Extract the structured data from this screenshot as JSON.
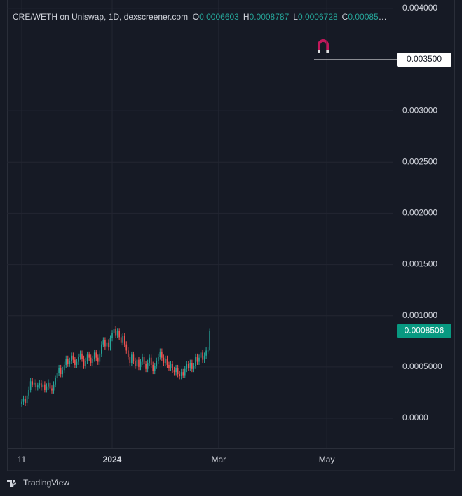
{
  "chart_data": {
    "type": "candlestick",
    "title": "CRE/WETH on Uniswap, 1D, dexscreener.com",
    "ohlc_labels": [
      "O",
      "H",
      "L",
      "C"
    ],
    "up_color": "#26a69a",
    "down_color": "#ef5350",
    "open": [
      0.00014,
      0.00016,
      0.00019,
      0.00015,
      0.00022,
      0.00028,
      0.00036,
      0.00033,
      0.00035,
      0.0003,
      0.00032,
      0.00034,
      0.0003,
      0.00033,
      0.00028,
      0.00031,
      0.00035,
      0.00029,
      0.00027,
      0.00033,
      0.00039,
      0.00044,
      0.00049,
      0.00043,
      0.00047,
      0.00052,
      0.00058,
      0.00053,
      0.00056,
      0.00061,
      0.00057,
      0.00052,
      0.00055,
      0.0006,
      0.00063,
      0.00058,
      0.00051,
      0.00056,
      0.00062,
      0.00059,
      0.00054,
      0.00058,
      0.00064,
      0.00059,
      0.00055,
      0.00063,
      0.00072,
      0.00076,
      0.0007,
      0.00074,
      0.00069,
      0.00078,
      0.00083,
      0.00087,
      0.00081,
      0.00085,
      0.00079,
      0.00074,
      0.0008,
      0.00072,
      0.00066,
      0.0006,
      0.00054,
      0.00062,
      0.00056,
      0.00051,
      0.00057,
      0.0005,
      0.00055,
      0.0006,
      0.00053,
      0.00048,
      0.00054,
      0.00059,
      0.00052,
      0.00046,
      0.00051,
      0.00056,
      0.0006,
      0.00065,
      0.00059,
      0.00054,
      0.00058,
      0.00052,
      0.00049,
      0.00053,
      0.00047,
      0.00045,
      0.00049,
      0.00043,
      0.00041,
      0.00045,
      0.00042,
      0.00048,
      0.00053,
      0.00049,
      0.00054,
      0.00048,
      0.00051,
      0.0006,
      0.00055,
      0.00059,
      0.00064,
      0.00057,
      0.00061,
      0.00066,
      0.0006603
    ],
    "high": [
      0.00019,
      0.00022,
      0.00022,
      0.00025,
      0.00031,
      0.00039,
      0.00039,
      0.00038,
      0.00038,
      0.00035,
      0.00037,
      0.00037,
      0.00036,
      0.00036,
      0.00034,
      0.00038,
      0.00038,
      0.00032,
      0.00036,
      0.00042,
      0.00047,
      0.00052,
      0.00052,
      0.0005,
      0.00055,
      0.00061,
      0.00061,
      0.00059,
      0.00064,
      0.00064,
      0.0006,
      0.00058,
      0.00063,
      0.00066,
      0.00066,
      0.00061,
      0.00059,
      0.00065,
      0.00065,
      0.00062,
      0.00061,
      0.00067,
      0.00067,
      0.00062,
      0.00066,
      0.00075,
      0.00079,
      0.00079,
      0.00077,
      0.00077,
      0.00081,
      0.00086,
      0.0009,
      0.0009,
      0.00088,
      0.00088,
      0.00082,
      0.00083,
      0.00083,
      0.00075,
      0.00069,
      0.00063,
      0.00065,
      0.00065,
      0.00059,
      0.0006,
      0.0006,
      0.00058,
      0.00063,
      0.00063,
      0.00056,
      0.00057,
      0.00062,
      0.00062,
      0.00055,
      0.00054,
      0.00059,
      0.00063,
      0.00068,
      0.00068,
      0.00062,
      0.00061,
      0.00061,
      0.00055,
      0.00056,
      0.00056,
      0.0005,
      0.00052,
      0.00052,
      0.00046,
      0.00048,
      0.00048,
      0.00051,
      0.00056,
      0.00056,
      0.00057,
      0.00057,
      0.00054,
      0.00063,
      0.00063,
      0.00062,
      0.00067,
      0.00067,
      0.00064,
      0.00069,
      0.00069,
      0.0008787
    ],
    "low": [
      0.00011,
      0.00013,
      0.00012,
      0.00012,
      0.00019,
      0.00025,
      0.0003,
      0.0003,
      0.00027,
      0.00027,
      0.00029,
      0.00027,
      0.00027,
      0.00025,
      0.00025,
      0.00028,
      0.00026,
      0.00024,
      0.00024,
      0.0003,
      0.00036,
      0.00041,
      0.0004,
      0.0004,
      0.00044,
      0.00049,
      0.0005,
      0.0005,
      0.00053,
      0.00054,
      0.00049,
      0.00049,
      0.00052,
      0.00057,
      0.00055,
      0.00048,
      0.00048,
      0.00053,
      0.00056,
      0.00051,
      0.00051,
      0.00055,
      0.00056,
      0.00052,
      0.00052,
      0.0006,
      0.00069,
      0.00067,
      0.00067,
      0.00066,
      0.00066,
      0.00075,
      0.0008,
      0.00078,
      0.00078,
      0.00076,
      0.00071,
      0.00071,
      0.00069,
      0.00063,
      0.00057,
      0.00051,
      0.00051,
      0.00053,
      0.00048,
      0.00048,
      0.00047,
      0.00047,
      0.00052,
      0.0005,
      0.00045,
      0.00045,
      0.00051,
      0.00049,
      0.00043,
      0.00043,
      0.00048,
      0.00053,
      0.00057,
      0.00056,
      0.00051,
      0.00051,
      0.00049,
      0.00046,
      0.00046,
      0.00044,
      0.00042,
      0.00042,
      0.0004,
      0.00038,
      0.00038,
      0.00039,
      0.00039,
      0.00045,
      0.00046,
      0.00046,
      0.00045,
      0.00045,
      0.00048,
      0.00052,
      0.00052,
      0.00056,
      0.00054,
      0.00054,
      0.00058,
      0.00063,
      0.0006728
    ],
    "close": [
      0.00016,
      0.00019,
      0.00015,
      0.00022,
      0.00028,
      0.00036,
      0.00033,
      0.00035,
      0.0003,
      0.00032,
      0.00034,
      0.0003,
      0.00033,
      0.00028,
      0.00031,
      0.00035,
      0.00029,
      0.00027,
      0.00033,
      0.00039,
      0.00044,
      0.00049,
      0.00043,
      0.00047,
      0.00052,
      0.00058,
      0.00053,
      0.00056,
      0.00061,
      0.00057,
      0.00052,
      0.00055,
      0.0006,
      0.00063,
      0.00058,
      0.00051,
      0.00056,
      0.00062,
      0.00059,
      0.00054,
      0.00058,
      0.00064,
      0.00059,
      0.00055,
      0.00063,
      0.00072,
      0.00076,
      0.0007,
      0.00074,
      0.00069,
      0.00078,
      0.00083,
      0.00087,
      0.00081,
      0.00085,
      0.00079,
      0.00074,
      0.0008,
      0.00072,
      0.00066,
      0.0006,
      0.00054,
      0.00062,
      0.00056,
      0.00051,
      0.00057,
      0.0005,
      0.00055,
      0.0006,
      0.00053,
      0.00048,
      0.00054,
      0.00059,
      0.00052,
      0.00046,
      0.00051,
      0.00056,
      0.0006,
      0.00065,
      0.00059,
      0.00054,
      0.00058,
      0.00052,
      0.00049,
      0.00053,
      0.00047,
      0.00045,
      0.00049,
      0.00043,
      0.00041,
      0.00045,
      0.00042,
      0.00048,
      0.00053,
      0.00049,
      0.00054,
      0.00048,
      0.00051,
      0.0006,
      0.00055,
      0.00059,
      0.00064,
      0.00057,
      0.00061,
      0.00066,
      0.00066,
      0.0008506
    ],
    "xlim": [
      -8.3,
      209.1
    ],
    "xticks": [
      {
        "value": 0,
        "label": "11"
      },
      {
        "value": 51,
        "label": "2024"
      },
      {
        "value": 111,
        "label": "Mar"
      },
      {
        "value": 172,
        "label": "May"
      }
    ],
    "ylim": [
      -0.000294,
      0.004081
    ],
    "yticks": [
      {
        "value": 0,
        "label": "0.0000"
      },
      {
        "value": 0.0005,
        "label": "0.0005000"
      },
      {
        "value": 0.001,
        "label": "0.001000"
      },
      {
        "value": 0.0015,
        "label": "0.001500"
      },
      {
        "value": 0.002,
        "label": "0.002000"
      },
      {
        "value": 0.0025,
        "label": "0.002500"
      },
      {
        "value": 0.003,
        "label": "0.003000"
      },
      {
        "value": 0.004,
        "label": "0.004000"
      }
    ],
    "price_line": {
      "value": 0.0035,
      "label": "0.003500"
    },
    "grid": true,
    "brand": "TradingView"
  }
}
